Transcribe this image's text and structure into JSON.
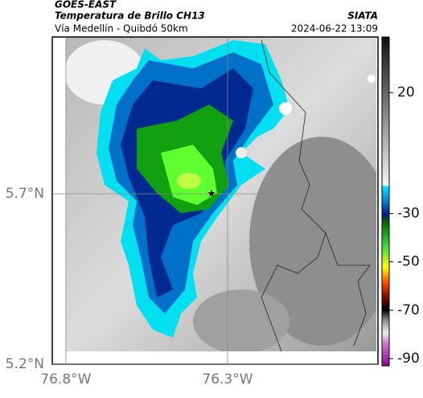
{
  "header": {
    "satellite": "GOES-EAST",
    "product": "Temperatura de Brillo CH13",
    "agency": "SIATA",
    "route": "Vía Medellín - Quibdó 50km",
    "timestamp": "2024-06-22 13:09"
  },
  "map": {
    "xlim": [
      -76.842,
      -75.835
    ],
    "ylim": [
      5.2,
      6.16
    ],
    "xticks": [
      {
        "value": -76.8,
        "label": "76.8°W"
      },
      {
        "value": -76.3,
        "label": "76.3°W"
      }
    ],
    "yticks": [
      {
        "value": 5.7,
        "label": "5.7°N"
      },
      {
        "value": 5.2,
        "label": "5.2°N"
      }
    ]
  },
  "colorbar": {
    "lim": [
      -93,
      43
    ],
    "ticks": [
      20,
      -30,
      -50,
      -70,
      -90
    ]
  }
}
